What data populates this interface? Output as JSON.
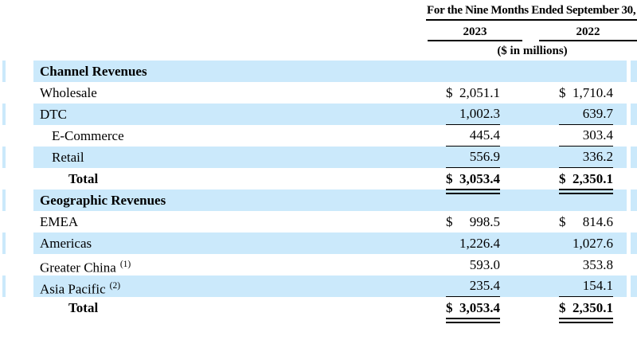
{
  "header": {
    "period_label": "For the Nine Months Ended September 30,",
    "col_2023": "2023",
    "col_2022": "2022",
    "units_label": "($ in millions)"
  },
  "colors": {
    "stripe_blue": "#cbe9fb",
    "text": "#000000"
  },
  "table": {
    "rows": [
      {
        "label": "Channel Revenues",
        "style": "section",
        "striped": true
      },
      {
        "label": "Wholesale",
        "striped": false,
        "c1": {
          "dollar": "$",
          "value": "2,051.1"
        },
        "c2": {
          "dollar": "$",
          "value": "1,710.4"
        }
      },
      {
        "label": "DTC",
        "striped": true,
        "c1": {
          "value": "1,002.3",
          "underline": "single"
        },
        "c2": {
          "value": "639.7",
          "underline": "single"
        }
      },
      {
        "label": "E-Commerce",
        "indent": 1,
        "striped": false,
        "c1": {
          "value": "445.4",
          "underline": "single"
        },
        "c2": {
          "value": "303.4",
          "underline": "single"
        }
      },
      {
        "label": "Retail",
        "indent": 1,
        "striped": true,
        "c1": {
          "value": "556.9",
          "underline": "single"
        },
        "c2": {
          "value": "336.2",
          "underline": "single"
        }
      },
      {
        "label": "Total",
        "style": "total",
        "indent": 2,
        "striped": false,
        "c1": {
          "dollar": "$",
          "value": "3,053.4",
          "underline": "double"
        },
        "c2": {
          "dollar": "$",
          "value": "2,350.1",
          "underline": "double"
        }
      },
      {
        "label": "Geographic Revenues",
        "style": "section",
        "striped": true
      },
      {
        "label": "EMEA",
        "striped": false,
        "c1": {
          "dollar": "$",
          "value": "998.5"
        },
        "c2": {
          "dollar": "$",
          "value": "814.6"
        }
      },
      {
        "label": "Americas",
        "striped": true,
        "c1": {
          "value": "1,226.4"
        },
        "c2": {
          "value": "1,027.6"
        }
      },
      {
        "label": "Greater China",
        "sup": "(1)",
        "striped": false,
        "c1": {
          "value": "593.0"
        },
        "c2": {
          "value": "353.8"
        }
      },
      {
        "label": "Asia Pacific",
        "sup": "(2)",
        "striped": true,
        "c1": {
          "value": "235.4",
          "underline": "single"
        },
        "c2": {
          "value": "154.1",
          "underline": "single"
        }
      },
      {
        "label": "Total",
        "style": "total",
        "indent": 2,
        "striped": false,
        "c1": {
          "dollar": "$",
          "value": "3,053.4",
          "underline": "double"
        },
        "c2": {
          "dollar": "$",
          "value": "2,350.1",
          "underline": "double"
        }
      }
    ]
  }
}
